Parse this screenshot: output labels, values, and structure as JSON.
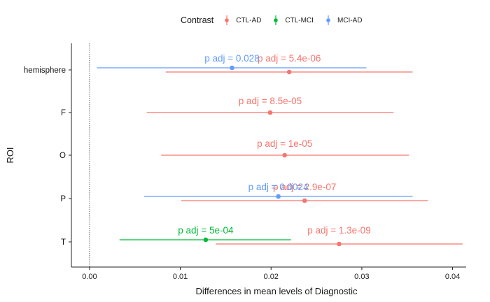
{
  "legend": {
    "title": "Contrast",
    "items": [
      {
        "label": "CTL-AD",
        "color": "#F8766D"
      },
      {
        "label": "CTL-MCI",
        "color": "#00BA38"
      },
      {
        "label": "MCI-AD",
        "color": "#619CFF"
      }
    ]
  },
  "chart_data": {
    "type": "scatter",
    "xlabel": "Differences in mean levels of Diagnostic",
    "ylabel": "ROI",
    "xlim": [
      -0.002,
      0.0415
    ],
    "x_ticks": [
      "0.00",
      "0.01",
      "0.02",
      "0.03",
      "0.04"
    ],
    "x_tick_values": [
      0,
      0.01,
      0.02,
      0.03,
      0.04
    ],
    "categories": [
      "hemisphere",
      "F",
      "O",
      "P",
      "T"
    ],
    "reference_line": 0,
    "legend_position": "top",
    "grid": false,
    "series": [
      {
        "name": "CTL-AD",
        "color": "#F8766D",
        "points": [
          {
            "category": "hemisphere",
            "estimate": 0.022,
            "low": 0.0084,
            "high": 0.0356,
            "label": "p adj = 5.4e-06"
          },
          {
            "category": "F",
            "estimate": 0.0199,
            "low": 0.0063,
            "high": 0.0335,
            "label": "p adj = 8.5e-05"
          },
          {
            "category": "O",
            "estimate": 0.0215,
            "low": 0.0079,
            "high": 0.0352,
            "label": "p adj = 1e-05"
          },
          {
            "category": "P",
            "estimate": 0.0237,
            "low": 0.0101,
            "high": 0.0373,
            "label": "p adj = 2.9e-07"
          },
          {
            "category": "T",
            "estimate": 0.0275,
            "low": 0.0139,
            "high": 0.0411,
            "label": "p adj = 1.3e-09"
          }
        ]
      },
      {
        "name": "CTL-MCI",
        "color": "#00BA38",
        "points": [
          {
            "category": "T",
            "estimate": 0.0128,
            "low": 0.0033,
            "high": 0.0222,
            "label": "p adj = 5e-04"
          }
        ]
      },
      {
        "name": "MCI-AD",
        "color": "#619CFF",
        "points": [
          {
            "category": "hemisphere",
            "estimate": 0.0157,
            "low": 0.0008,
            "high": 0.0305,
            "label": "p adj = 0.028"
          },
          {
            "category": "P",
            "estimate": 0.0208,
            "low": 0.006,
            "high": 0.0356,
            "label": "p adj = 0.0024"
          }
        ]
      }
    ]
  }
}
